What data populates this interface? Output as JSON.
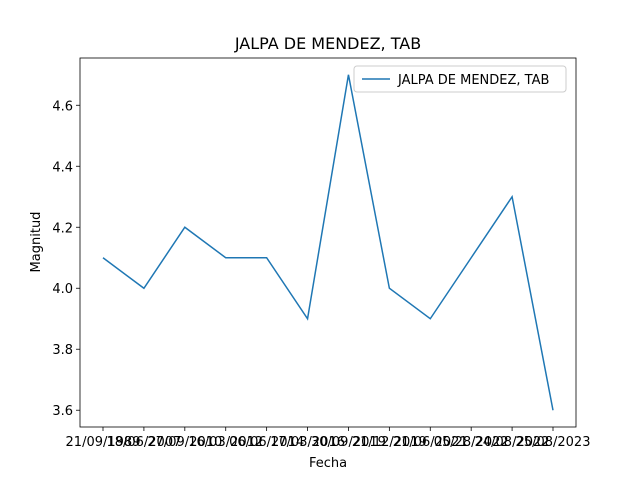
{
  "chart_data": {
    "type": "line",
    "title": "JALPA DE MENDEZ, TAB",
    "x_label": "Fecha",
    "y_label": "Magnitud",
    "categories": [
      "21/09/1989",
      "18/06/2007",
      "27/09/2010",
      "16/03/2012",
      "06/06/2014",
      "17/03/2016",
      "30/09/2019",
      "21/12/2019",
      "21/06/2021",
      "05/28/2022",
      "24/08/2022",
      "25/08/2023"
    ],
    "series": [
      {
        "name": "JALPA DE MENDEZ, TAB",
        "color": "#1f77b4",
        "values": [
          4.1,
          4.0,
          4.2,
          4.1,
          4.1,
          3.9,
          4.7,
          4.0,
          3.9,
          4.1,
          4.3,
          3.6
        ]
      }
    ],
    "ylim": [
      3.545,
      4.755
    ],
    "yticks": [
      {
        "value": 3.6,
        "label": "3.6"
      },
      {
        "value": 3.8,
        "label": "3.8"
      },
      {
        "value": 4.0,
        "label": "4.0"
      },
      {
        "value": 4.2,
        "label": "4.2"
      },
      {
        "value": 4.4,
        "label": "4.4"
      },
      {
        "value": 4.6,
        "label": "4.6"
      }
    ],
    "legend": "upper right"
  }
}
